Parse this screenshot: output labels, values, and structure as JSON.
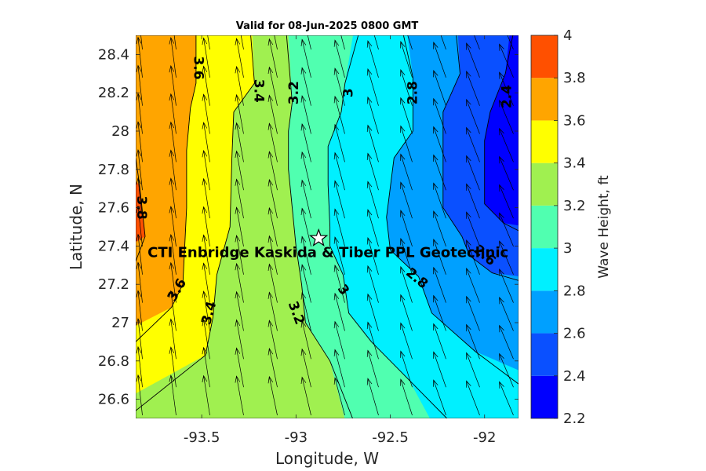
{
  "chart_data": {
    "type": "contour",
    "title": "Valid for 08-Jun-2025 0800 GMT",
    "xlabel": "Longitude, W",
    "ylabel": "Latitude, N",
    "xlim": [
      -93.85,
      -91.82
    ],
    "ylim": [
      26.5,
      28.5
    ],
    "xticks": [
      -93.5,
      -93,
      -92.5,
      -92
    ],
    "yticks": [
      26.6,
      26.8,
      27,
      27.2,
      27.4,
      27.6,
      27.8,
      28,
      28.2,
      28.4
    ],
    "colorbar": {
      "label": "Wave Height, ft",
      "range": [
        2.2,
        4
      ],
      "ticks": [
        2.2,
        2.4,
        2.6,
        2.8,
        3,
        3.2,
        3.4,
        3.6,
        3.8,
        4
      ],
      "bands": [
        {
          "from": 2.2,
          "to": 2.4,
          "color": "#0000ff"
        },
        {
          "from": 2.4,
          "to": 2.6,
          "color": "#0a50ff"
        },
        {
          "from": 2.6,
          "to": 2.8,
          "color": "#00a0ff"
        },
        {
          "from": 2.8,
          "to": 3.0,
          "color": "#00f0ff"
        },
        {
          "from": 3.0,
          "to": 3.2,
          "color": "#50ffb0"
        },
        {
          "from": 3.2,
          "to": 3.4,
          "color": "#a0f050"
        },
        {
          "from": 3.4,
          "to": 3.6,
          "color": "#ffff00"
        },
        {
          "from": 3.6,
          "to": 3.8,
          "color": "#ffa500"
        },
        {
          "from": 3.8,
          "to": 4.0,
          "color": "#ff5000"
        }
      ]
    },
    "contour_levels": [
      2.4,
      2.6,
      2.8,
      3.0,
      3.2,
      3.4,
      3.6,
      3.8
    ],
    "contour_lines": [
      {
        "level": 3.8,
        "points": [
          [
            -93.85,
            27.86
          ],
          [
            -93.83,
            27.72
          ],
          [
            -93.8,
            27.45
          ],
          [
            -93.85,
            27.32
          ]
        ]
      },
      {
        "level": 3.6,
        "points": [
          [
            -93.53,
            28.5
          ],
          [
            -93.53,
            28.25
          ],
          [
            -93.56,
            28.12
          ],
          [
            -93.58,
            27.9
          ],
          [
            -93.58,
            27.6
          ],
          [
            -93.6,
            27.2
          ],
          [
            -93.66,
            27.08
          ],
          [
            -93.85,
            26.9
          ]
        ]
      },
      {
        "level": 3.4,
        "points": [
          [
            -93.24,
            28.5
          ],
          [
            -93.22,
            28.25
          ],
          [
            -93.33,
            28.1
          ],
          [
            -93.34,
            27.86
          ],
          [
            -93.35,
            27.5
          ],
          [
            -93.42,
            27.25
          ],
          [
            -93.44,
            27.03
          ],
          [
            -93.48,
            26.83
          ],
          [
            -93.85,
            26.54
          ]
        ]
      },
      {
        "level": 3.2,
        "points": [
          [
            -93.05,
            28.5
          ],
          [
            -93.02,
            28.15
          ],
          [
            -93.04,
            28.0
          ],
          [
            -93.04,
            27.8
          ],
          [
            -93.02,
            27.6
          ],
          [
            -93.0,
            27.4
          ],
          [
            -92.97,
            27.2
          ],
          [
            -92.95,
            27.0
          ],
          [
            -92.82,
            26.8
          ],
          [
            -92.7,
            26.5
          ]
        ]
      },
      {
        "level": 3.0,
        "points": [
          [
            -92.67,
            28.5
          ],
          [
            -92.74,
            28.25
          ],
          [
            -92.76,
            28.1
          ],
          [
            -92.83,
            27.92
          ],
          [
            -92.83,
            27.72
          ],
          [
            -92.82,
            27.5
          ],
          [
            -92.82,
            27.4
          ],
          [
            -92.75,
            27.25
          ],
          [
            -92.72,
            27.05
          ],
          [
            -92.6,
            26.9
          ],
          [
            -92.4,
            26.7
          ],
          [
            -92.2,
            26.5
          ]
        ]
      },
      {
        "level": 2.8,
        "points": [
          [
            -92.43,
            28.5
          ],
          [
            -92.38,
            28.28
          ],
          [
            -92.38,
            28.0
          ],
          [
            -92.48,
            27.86
          ],
          [
            -92.52,
            27.55
          ],
          [
            -92.5,
            27.38
          ],
          [
            -92.35,
            27.24
          ],
          [
            -92.28,
            27.05
          ],
          [
            -92.05,
            26.85
          ],
          [
            -91.82,
            26.68
          ]
        ]
      },
      {
        "level": 2.6,
        "points": [
          [
            -92.15,
            28.5
          ],
          [
            -92.13,
            28.3
          ],
          [
            -92.22,
            28.1
          ],
          [
            -92.22,
            27.86
          ],
          [
            -92.22,
            27.6
          ],
          [
            -92.12,
            27.45
          ],
          [
            -92.08,
            27.35
          ],
          [
            -91.96,
            27.26
          ],
          [
            -91.82,
            27.22
          ]
        ]
      },
      {
        "level": 2.4,
        "points": [
          [
            -91.85,
            28.5
          ],
          [
            -91.89,
            28.3
          ],
          [
            -91.97,
            28.1
          ],
          [
            -92.0,
            27.95
          ],
          [
            -92.0,
            27.8
          ],
          [
            -92.0,
            27.62
          ],
          [
            -91.9,
            27.52
          ],
          [
            -91.82,
            27.48
          ]
        ]
      }
    ],
    "contour_labels": [
      {
        "text": "3.6",
        "lon": -93.52,
        "lat": 28.33,
        "angle": 90
      },
      {
        "text": "3.4",
        "lon": -93.2,
        "lat": 28.21,
        "angle": 90
      },
      {
        "text": "3.2",
        "lon": -93.01,
        "lat": 28.2,
        "angle": -90
      },
      {
        "text": "3",
        "lon": -92.72,
        "lat": 28.2,
        "angle": -90
      },
      {
        "text": "2.8",
        "lon": -92.38,
        "lat": 28.2,
        "angle": -90
      },
      {
        "text": "2.4",
        "lon": -91.88,
        "lat": 28.18,
        "angle": -90
      },
      {
        "text": "3.8",
        "lon": -93.82,
        "lat": 27.6,
        "angle": 90
      },
      {
        "text": "3.6",
        "lon": -93.63,
        "lat": 27.17,
        "angle": -60
      },
      {
        "text": "3.4",
        "lon": -93.46,
        "lat": 27.05,
        "angle": -75
      },
      {
        "text": "3.2",
        "lon": -93.0,
        "lat": 27.05,
        "angle": 70
      },
      {
        "text": "3",
        "lon": -92.75,
        "lat": 27.17,
        "angle": 55
      },
      {
        "text": "2.8",
        "lon": -92.36,
        "lat": 27.23,
        "angle": 40
      },
      {
        "text": "2.6",
        "lon": -92.0,
        "lat": 27.35,
        "angle": 40
      }
    ],
    "station": {
      "lon": -92.88,
      "lat": 27.44,
      "marker": "star",
      "label": "CTI Enbridge  Kaskida & Tiber PPL Geotechnic"
    },
    "wave_direction": "from southeast (arrows point northwest)"
  }
}
